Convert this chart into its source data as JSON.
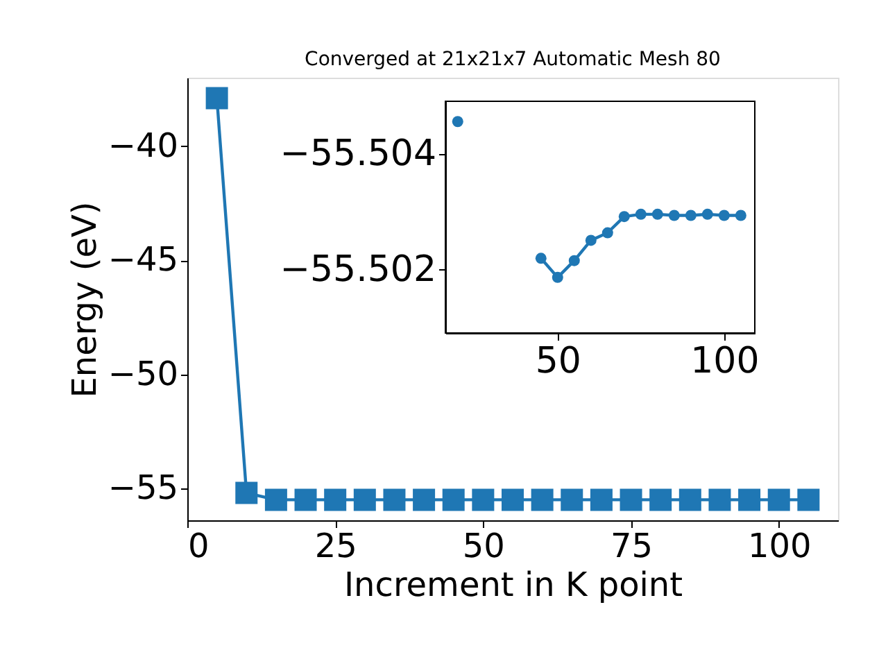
{
  "chart_data": [
    {
      "type": "line",
      "title": "Converged at 21x21x7 Automatic Mesh 80",
      "xlabel": "Increment in K point",
      "ylabel": "Energy (eV)",
      "marker": "square",
      "x": [
        5,
        10,
        15,
        20,
        25,
        30,
        35,
        40,
        45,
        50,
        55,
        60,
        65,
        70,
        75,
        80,
        85,
        90,
        95,
        100,
        105
      ],
      "series": [
        {
          "color": "#1f77b4",
          "values": [
            -37.9,
            -55.2,
            -55.5,
            -55.5,
            -55.5,
            -55.5,
            -55.5,
            -55.5,
            -55.5,
            -55.5,
            -55.5,
            -55.5,
            -55.5,
            -55.5,
            -55.5,
            -55.5,
            -55.5,
            -55.5,
            -55.5,
            -55.5,
            -55.5
          ]
        }
      ],
      "xlim": [
        0,
        110
      ],
      "ylim": [
        -56.4,
        -37.0
      ],
      "xticks": [
        0,
        25,
        50,
        75,
        100
      ],
      "yticks": [
        -55,
        -50,
        -45,
        -40
      ]
    },
    {
      "type": "line",
      "marker": "circle",
      "x": [
        20,
        25,
        30,
        35,
        40,
        45,
        50,
        55,
        60,
        65,
        70,
        75,
        80,
        85,
        90,
        95,
        100,
        105
      ],
      "series": [
        {
          "color": "#1f77b4",
          "values": [
            -55.50455,
            null,
            null,
            null,
            null,
            -55.50219,
            -55.50186,
            -55.50215,
            -55.5025,
            -55.50263,
            -55.50291,
            -55.50295,
            -55.50295,
            -55.50293,
            -55.50293,
            -55.50295,
            -55.50293,
            -55.50293
          ]
        }
      ],
      "xlim": [
        16.3,
        109.2
      ],
      "ylim": [
        -55.5009,
        -55.5049
      ],
      "xticks": [
        50,
        100
      ],
      "yticks": [
        -55.504,
        -55.502
      ]
    }
  ]
}
